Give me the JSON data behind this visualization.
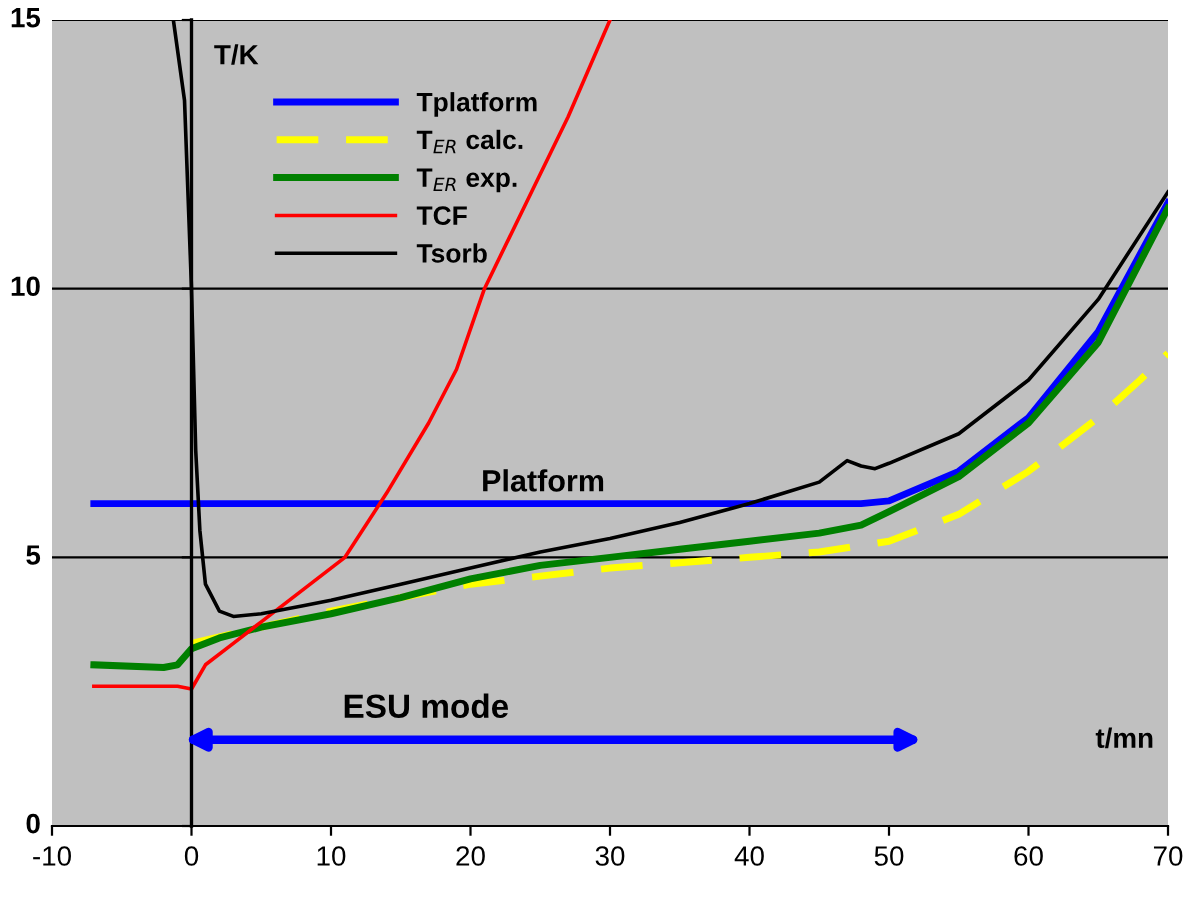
{
  "chart_data": {
    "type": "line",
    "xlabel": "t/mn",
    "ylabel": "T/K",
    "xlim": [
      -10,
      70
    ],
    "ylim": [
      0,
      15
    ],
    "xticks": [
      -10,
      0,
      10,
      20,
      30,
      40,
      50,
      60,
      70
    ],
    "yticks": [
      0,
      5,
      10,
      15
    ],
    "grid": "y",
    "legend": "top",
    "marker": "none",
    "annotations": [
      "Platform",
      "ESU mode"
    ],
    "series": [
      {
        "name": "Tplatform",
        "color": "#0000ff",
        "x": [
          -7,
          0,
          10,
          20,
          30,
          40,
          48,
          50,
          55,
          60,
          65,
          70
        ],
        "values": [
          6.0,
          6.0,
          6.0,
          6.0,
          6.0,
          6.0,
          6.0,
          6.05,
          6.6,
          7.6,
          9.2,
          11.6
        ]
      },
      {
        "name": "T$_{ER}$ calc.",
        "color": "#ffff00",
        "line_style": "dashed",
        "x": [
          0,
          5,
          10,
          15,
          20,
          25,
          30,
          35,
          40,
          45,
          50,
          55,
          60,
          65,
          68,
          70
        ],
        "values": [
          3.4,
          3.7,
          4.0,
          4.25,
          4.5,
          4.65,
          4.8,
          4.9,
          5.0,
          5.1,
          5.3,
          5.8,
          6.6,
          7.6,
          8.3,
          8.8
        ]
      },
      {
        "name": "T$_{ER}$ exp.",
        "color": "#008000",
        "x": [
          -7,
          -2,
          -1,
          0,
          2,
          5,
          10,
          15,
          20,
          25,
          30,
          35,
          40,
          45,
          48,
          50,
          55,
          60,
          65,
          70
        ],
        "values": [
          3.0,
          2.95,
          3.0,
          3.3,
          3.5,
          3.7,
          3.95,
          4.25,
          4.6,
          4.85,
          5.0,
          5.15,
          5.3,
          5.45,
          5.6,
          5.85,
          6.5,
          7.5,
          9.0,
          11.5
        ]
      },
      {
        "name": "TCF",
        "color": "#ff0000",
        "x": [
          -7,
          -1,
          0,
          1,
          3,
          5,
          8,
          11,
          14,
          17,
          19,
          21,
          24,
          27,
          30
        ],
        "values": [
          2.6,
          2.6,
          2.55,
          3.0,
          3.4,
          3.8,
          4.4,
          5.0,
          6.2,
          7.5,
          8.5,
          10.0,
          11.6,
          13.2,
          15.0
        ]
      },
      {
        "name": "Tsorb",
        "color": "#000000",
        "x": [
          -1.3,
          -0.5,
          0,
          0.3,
          0.6,
          1,
          2,
          3,
          5,
          8,
          10,
          15,
          20,
          25,
          30,
          35,
          40,
          45,
          46,
          47,
          48,
          49,
          50,
          55,
          60,
          65,
          70
        ],
        "values": [
          15,
          13.5,
          10,
          7,
          5.5,
          4.5,
          4.0,
          3.9,
          3.95,
          4.1,
          4.2,
          4.5,
          4.8,
          5.1,
          5.35,
          5.65,
          6.0,
          6.4,
          6.6,
          6.8,
          6.7,
          6.65,
          6.75,
          7.3,
          8.3,
          9.8,
          11.8
        ]
      }
    ]
  }
}
